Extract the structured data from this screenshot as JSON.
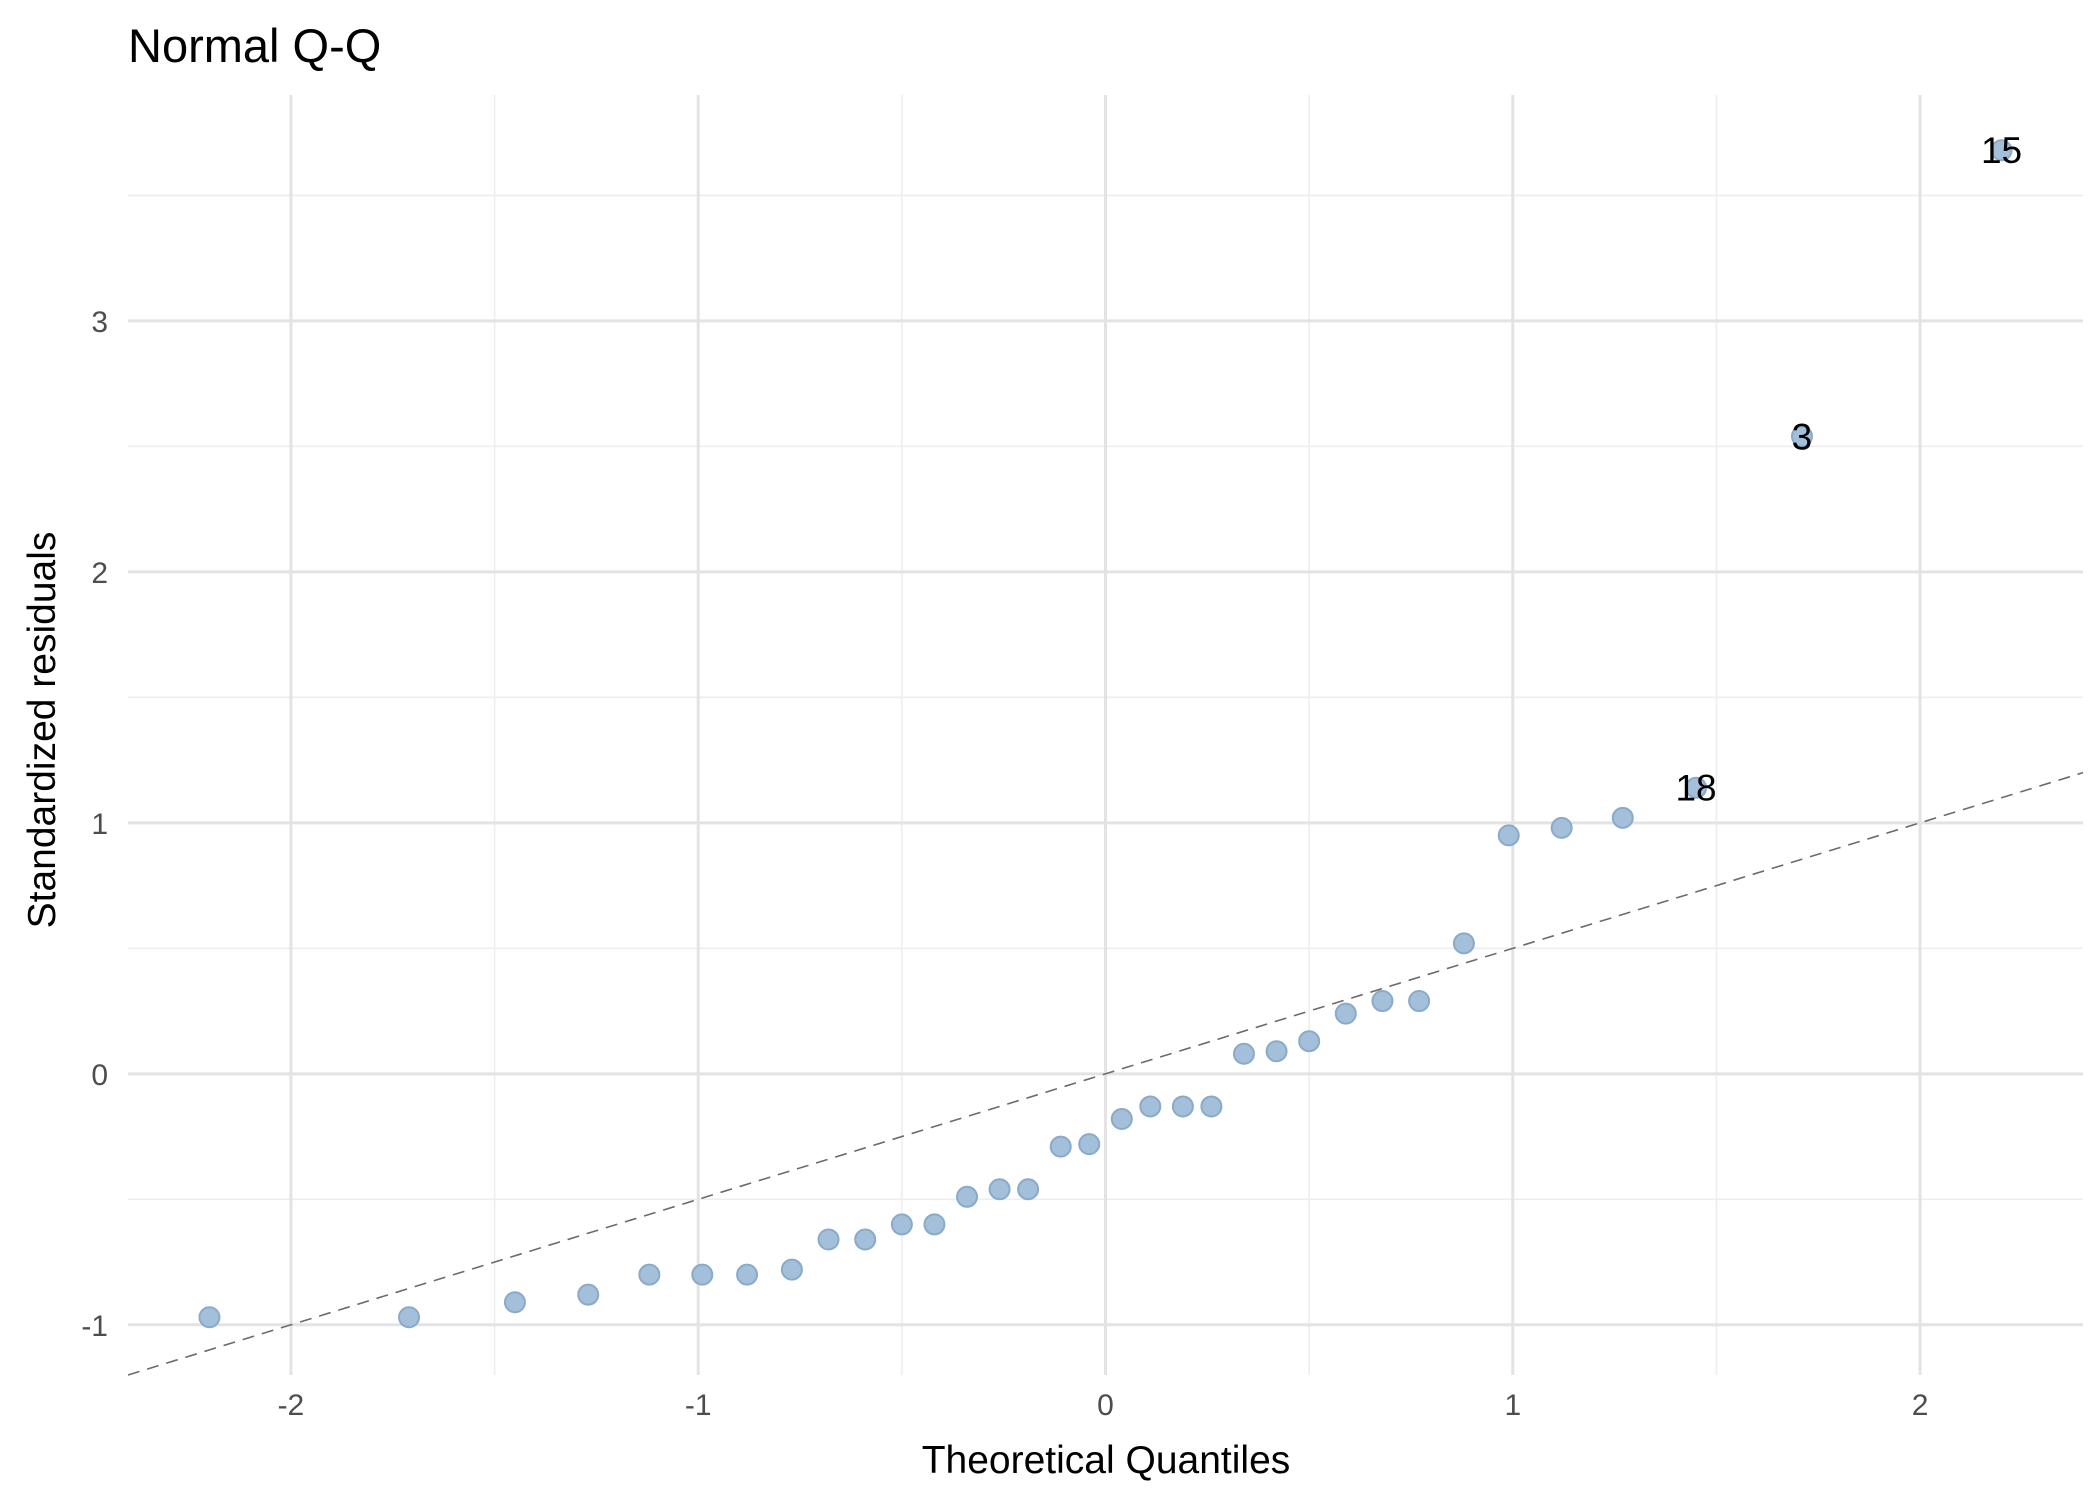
{
  "chart_data": {
    "type": "scatter",
    "title": "Normal Q-Q",
    "xlabel": "Theoretical Quantiles",
    "ylabel": "Standardized residuals",
    "xlim": [
      -2.4,
      2.4
    ],
    "ylim": [
      -1.2,
      3.9
    ],
    "xticks": [
      -2,
      -1,
      0,
      1,
      2
    ],
    "yticks": [
      -1,
      0,
      1,
      2,
      3
    ],
    "grid": true,
    "point_color": "#a3bfd9",
    "points": [
      {
        "x": -2.2,
        "y": -0.97
      },
      {
        "x": -1.71,
        "y": -0.97
      },
      {
        "x": -1.45,
        "y": -0.91
      },
      {
        "x": -1.27,
        "y": -0.88
      },
      {
        "x": -1.12,
        "y": -0.8
      },
      {
        "x": -0.99,
        "y": -0.8
      },
      {
        "x": -0.88,
        "y": -0.8
      },
      {
        "x": -0.77,
        "y": -0.78
      },
      {
        "x": -0.68,
        "y": -0.66
      },
      {
        "x": -0.59,
        "y": -0.66
      },
      {
        "x": -0.5,
        "y": -0.6
      },
      {
        "x": -0.42,
        "y": -0.6
      },
      {
        "x": -0.34,
        "y": -0.49
      },
      {
        "x": -0.26,
        "y": -0.46
      },
      {
        "x": -0.19,
        "y": -0.46
      },
      {
        "x": -0.11,
        "y": -0.29
      },
      {
        "x": -0.04,
        "y": -0.28
      },
      {
        "x": 0.04,
        "y": -0.18
      },
      {
        "x": 0.11,
        "y": -0.13
      },
      {
        "x": 0.19,
        "y": -0.13
      },
      {
        "x": 0.26,
        "y": -0.13
      },
      {
        "x": 0.34,
        "y": 0.08
      },
      {
        "x": 0.42,
        "y": 0.09
      },
      {
        "x": 0.5,
        "y": 0.13
      },
      {
        "x": 0.59,
        "y": 0.24
      },
      {
        "x": 0.68,
        "y": 0.29
      },
      {
        "x": 0.77,
        "y": 0.29
      },
      {
        "x": 0.88,
        "y": 0.52
      },
      {
        "x": 0.99,
        "y": 0.95
      },
      {
        "x": 1.12,
        "y": 0.98
      },
      {
        "x": 1.27,
        "y": 1.02
      },
      {
        "x": 1.45,
        "y": 1.14,
        "label": "18"
      },
      {
        "x": 1.71,
        "y": 2.54,
        "label": "3"
      },
      {
        "x": 2.2,
        "y": 3.68,
        "label": "15"
      }
    ],
    "reference_line": {
      "intercept": 0.0,
      "slope": 0.5,
      "style": "dashed"
    }
  }
}
